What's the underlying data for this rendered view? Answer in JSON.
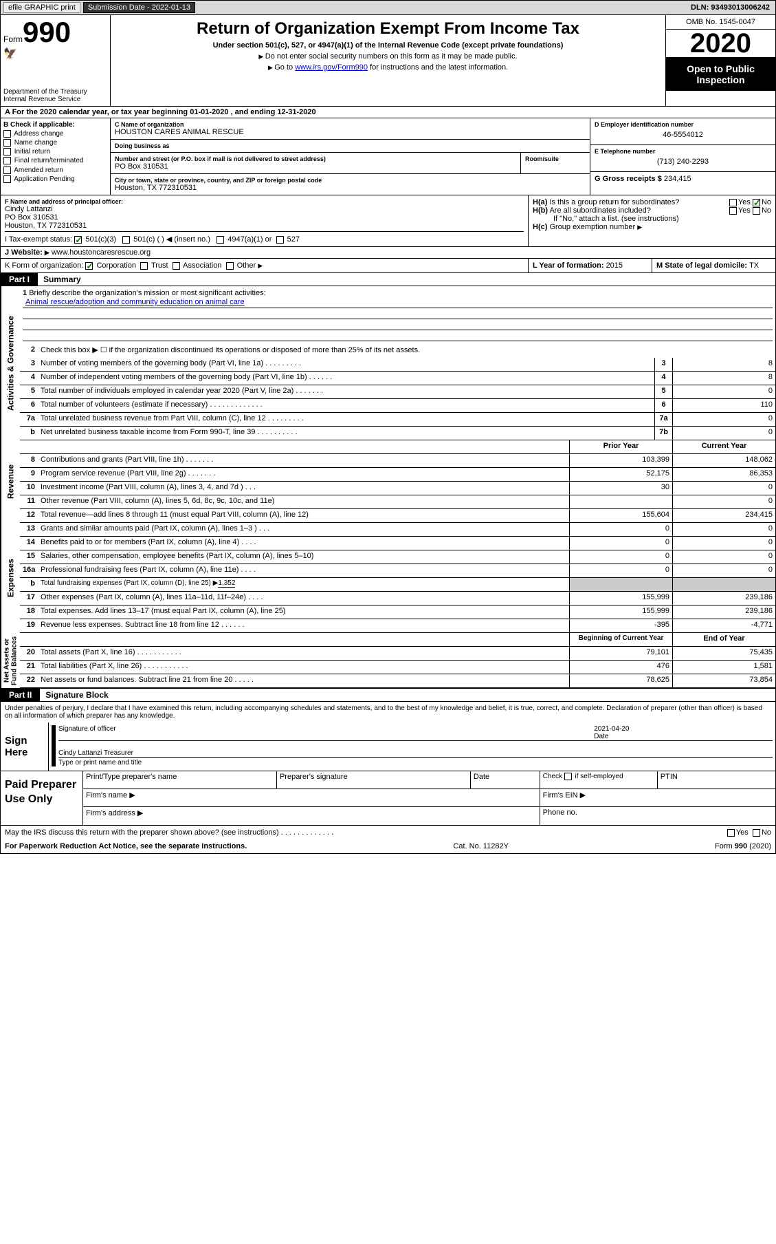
{
  "topbar": {
    "efile": "efile GRAPHIC print",
    "submission_label": "Submission Date - ",
    "submission_date": "2022-01-13",
    "dln_label": "DLN: ",
    "dln": "93493013006242"
  },
  "header": {
    "form_word": "Form",
    "form_num": "990",
    "dept": "Department of the Treasury\nInternal Revenue Service",
    "title": "Return of Organization Exempt From Income Tax",
    "sub_section": "Under section 501(c), 527, or 4947(a)(1) of the Internal Revenue Code (except private foundations)",
    "instr1": "Do not enter social security numbers on this form as it may be made public.",
    "instr2_a": "Go to ",
    "instr2_link": "www.irs.gov/Form990",
    "instr2_b": " for instructions and the latest information.",
    "omb": "OMB No. 1545-0047",
    "year": "2020",
    "public1": "Open to Public",
    "public2": "Inspection"
  },
  "line_a": {
    "text_a": "A For the 2020 calendar year, or tax year beginning ",
    "begin": "01-01-2020",
    "text_b": " , and ending ",
    "end": "12-31-2020"
  },
  "section_b": {
    "label": "B Check if applicable:",
    "opts": [
      "Address change",
      "Name change",
      "Initial return",
      "Final return/terminated",
      "Amended return",
      "Application Pending"
    ]
  },
  "section_c": {
    "name_label": "C Name of organization",
    "name": "HOUSTON CARES ANIMAL RESCUE",
    "dba_label": "Doing business as",
    "dba": "",
    "street_label": "Number and street (or P.O. box if mail is not delivered to street address)",
    "room_label": "Room/suite",
    "street": "PO Box 310531",
    "city_label": "City or town, state or province, country, and ZIP or foreign postal code",
    "city": "Houston, TX  772310531"
  },
  "section_d": {
    "ein_label": "D Employer identification number",
    "ein": "46-5554012",
    "tel_label": "E Telephone number",
    "tel": "(713) 240-2293",
    "gross_label": "G Gross receipts $ ",
    "gross": "234,415"
  },
  "section_f": {
    "label": "F  Name and address of principal officer:",
    "name": "Cindy Lattanzi",
    "street": "PO Box 310531",
    "city": "Houston, TX  772310531"
  },
  "section_h": {
    "ha_label": "H(a)",
    "ha_text": "Is this a group return for subordinates?",
    "yes": "Yes",
    "no": "No",
    "hb_label": "H(b)",
    "hb_text": "Are all subordinates included?",
    "hb_note": "If \"No,\" attach a list. (see instructions)",
    "hc_label": "H(c)",
    "hc_text": "Group exemption number "
  },
  "section_i": {
    "label": "I  Tax-exempt status:",
    "opt1": "501(c)(3)",
    "opt2": "501(c) (  ) ◀ (insert no.)",
    "opt3": "4947(a)(1) or",
    "opt4": "527"
  },
  "section_j": {
    "label": "J  Website: ",
    "url": "www.houstoncaresrescue.org"
  },
  "section_k": {
    "label": "K Form of organization:",
    "opts": [
      "Corporation",
      "Trust",
      "Association",
      "Other "
    ]
  },
  "section_l": {
    "label": "L Year of formation: ",
    "val": "2015"
  },
  "section_m": {
    "label": "M State of legal domicile: ",
    "val": "TX"
  },
  "part1": {
    "tab": "Part I",
    "title": "Summary",
    "side_labels": {
      "gov": "Activities & Governance",
      "rev": "Revenue",
      "exp": "Expenses",
      "net": "Net Assets or\nFund Balances"
    },
    "line1_label": "1",
    "line1_text": "Briefly describe the organization's mission or most significant activities:",
    "line1_mission": "Animal rescue/adoption and community education on animal care",
    "line2_label": "2",
    "line2_text": "Check this box ▶ ☐  if the organization discontinued its operations or disposed of more than 25% of its net assets.",
    "lines_gov": [
      {
        "n": "3",
        "d": "Number of voting members of the governing body (Part VI, line 1a)   .     .     .     .     .     .     .     .     .",
        "b": "3",
        "v": "8"
      },
      {
        "n": "4",
        "d": "Number of independent voting members of the governing body (Part VI, line 1b)  .     .     .     .     .     .",
        "b": "4",
        "v": "8"
      },
      {
        "n": "5",
        "d": "Total number of individuals employed in calendar year 2020 (Part V, line 2a)  .     .     .     .     .     .     .",
        "b": "5",
        "v": "0"
      },
      {
        "n": "6",
        "d": "Total number of volunteers (estimate if necessary)    .     .     .     .     .     .     .     .     .     .     .     .     .",
        "b": "6",
        "v": "110"
      },
      {
        "n": "7a",
        "d": "Total unrelated business revenue from Part VIII, column (C), line 12   .     .     .     .     .     .     .     .     .",
        "b": "7a",
        "v": "0"
      },
      {
        "n": "b",
        "d": "Net unrelated business taxable income from Form 990-T, line 39   .     .     .     .     .     .     .     .     .     .",
        "b": "7b",
        "v": "0"
      }
    ],
    "cols_header": {
      "prior": "Prior Year",
      "current": "Current Year"
    },
    "lines_rev": [
      {
        "n": "8",
        "d": "Contributions and grants (Part VIII, line 1h)    .     .     .     .     .     .     .",
        "p": "103,399",
        "c": "148,062"
      },
      {
        "n": "9",
        "d": "Program service revenue (Part VIII, line 2g)   .     .     .     .     .     .     .",
        "p": "52,175",
        "c": "86,353"
      },
      {
        "n": "10",
        "d": "Investment income (Part VIII, column (A), lines 3, 4, and 7d )     .     .     .",
        "p": "30",
        "c": "0"
      },
      {
        "n": "11",
        "d": "Other revenue (Part VIII, column (A), lines 5, 6d, 8c, 9c, 10c, and 11e)",
        "p": "",
        "c": "0"
      },
      {
        "n": "12",
        "d": "Total revenue—add lines 8 through 11 (must equal Part VIII, column (A), line 12)",
        "p": "155,604",
        "c": "234,415"
      }
    ],
    "lines_exp": [
      {
        "n": "13",
        "d": "Grants and similar amounts paid (Part IX, column (A), lines 1–3 )  .     .     .",
        "p": "0",
        "c": "0"
      },
      {
        "n": "14",
        "d": "Benefits paid to or for members (Part IX, column (A), line 4)  .     .     .     .",
        "p": "0",
        "c": "0"
      },
      {
        "n": "15",
        "d": "Salaries, other compensation, employee benefits (Part IX, column (A), lines 5–10)",
        "p": "0",
        "c": "0"
      },
      {
        "n": "16a",
        "d": "Professional fundraising fees (Part IX, column (A), line 11e)   .     .     .     .",
        "p": "0",
        "c": "0"
      }
    ],
    "line_b": {
      "n": "b",
      "d": "Total fundraising expenses (Part IX, column (D), line 25) ▶",
      "v": "1,352"
    },
    "lines_exp2": [
      {
        "n": "17",
        "d": "Other expenses (Part IX, column (A), lines 11a–11d, 11f–24e)   .     .     .     .",
        "p": "155,999",
        "c": "239,186"
      },
      {
        "n": "18",
        "d": "Total expenses. Add lines 13–17 (must equal Part IX, column (A), line 25)",
        "p": "155,999",
        "c": "239,186"
      },
      {
        "n": "19",
        "d": "Revenue less expenses. Subtract line 18 from line 12  .     .     .     .     .     .",
        "p": "-395",
        "c": "-4,771"
      }
    ],
    "cols_header2": {
      "begin": "Beginning of Current Year",
      "end": "End of Year"
    },
    "lines_net": [
      {
        "n": "20",
        "d": "Total assets (Part X, line 16)    .     .     .     .     .     .     .     .     .     .     .",
        "p": "79,101",
        "c": "75,435"
      },
      {
        "n": "21",
        "d": "Total liabilities (Part X, line 26)   .     .     .     .     .     .     .     .     .     .     .",
        "p": "476",
        "c": "1,581"
      },
      {
        "n": "22",
        "d": "Net assets or fund balances. Subtract line 21 from line 20  .     .     .     .     .",
        "p": "78,625",
        "c": "73,854"
      }
    ]
  },
  "part2": {
    "tab": "Part II",
    "title": "Signature Block",
    "perjury": "Under penalties of perjury, I declare that I have examined this return, including accompanying schedules and statements, and to the best of my knowledge and belief, it is true, correct, and complete. Declaration of preparer (other than officer) is based on all information of which preparer has any knowledge."
  },
  "sign": {
    "label": "Sign Here",
    "sig_label": "Signature of officer",
    "date_label": "Date",
    "date": "2021-04-20",
    "name": "Cindy Lattanzi  Treasurer",
    "name_label": "Type or print name and title"
  },
  "prep": {
    "label": "Paid Preparer Use Only",
    "h1": "Print/Type preparer's name",
    "h2": "Preparer's signature",
    "h3": "Date",
    "h4_a": "Check",
    "h4_b": "if self-employed",
    "h5": "PTIN",
    "firm_name": "Firm's name   ▶",
    "firm_ein": "Firm's EIN ▶",
    "firm_addr": "Firm's address ▶",
    "phone": "Phone no."
  },
  "discuss": {
    "text": "May the IRS discuss this return with the preparer shown above? (see instructions)   .     .     .     .     .     .     .     .     .     .     .     .     .",
    "yes": "Yes",
    "no": "No"
  },
  "foot": {
    "left": "For Paperwork Reduction Act Notice, see the separate instructions.",
    "mid": "Cat. No. 11282Y",
    "right": "Form 990 (2020)"
  }
}
